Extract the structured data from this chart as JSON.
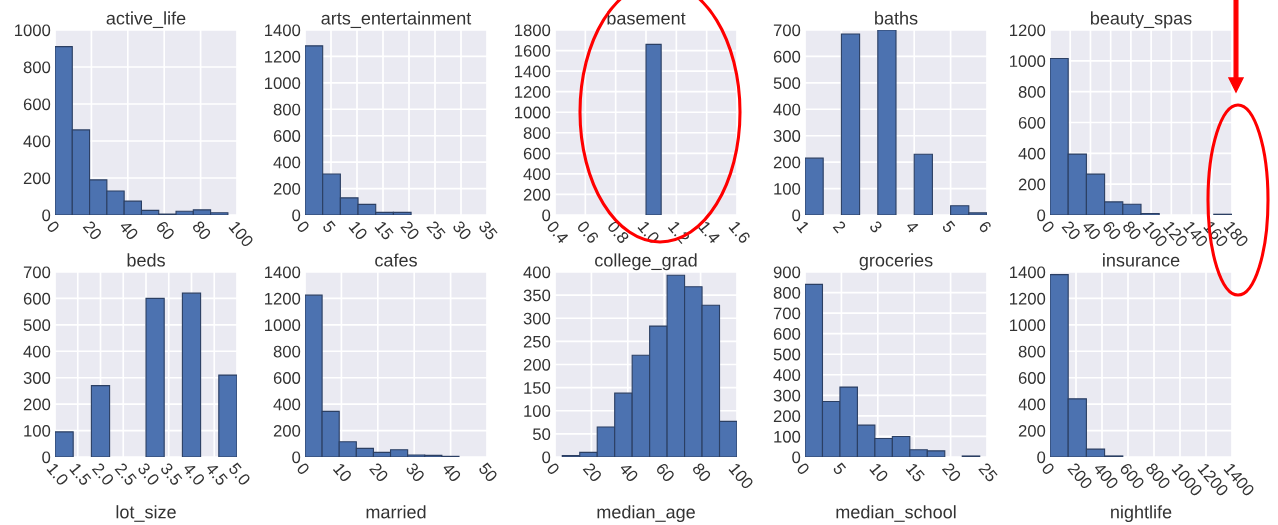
{
  "chart_data": [
    {
      "type": "histogram",
      "title": "active_life",
      "color": "#4c72b0",
      "bins": [
        0,
        9.5,
        19,
        28.5,
        38,
        47.5,
        57,
        66.5,
        76,
        85.5,
        95
      ],
      "values": [
        910,
        460,
        190,
        130,
        75,
        25,
        5,
        20,
        28,
        12
      ],
      "xlim": [
        0,
        100
      ],
      "xticks": [
        0,
        20,
        40,
        60,
        80,
        100
      ],
      "ylim": [
        0,
        1000
      ],
      "yticks": [
        0,
        200,
        400,
        600,
        800,
        1000
      ],
      "grid": true
    },
    {
      "type": "histogram",
      "title": "arts_entertainment",
      "color": "#4c72b0",
      "bins": [
        0,
        3.4,
        6.8,
        10.2,
        13.6,
        17,
        20.4,
        23.8,
        27.2,
        30.6,
        34
      ],
      "values": [
        1280,
        310,
        130,
        80,
        20,
        20,
        0,
        0,
        0,
        0
      ],
      "xlim": [
        0,
        35
      ],
      "xticks": [
        0,
        5,
        10,
        15,
        20,
        25,
        30,
        35
      ],
      "ylim": [
        0,
        1400
      ],
      "yticks": [
        0,
        200,
        400,
        600,
        800,
        1000,
        1200,
        1400
      ],
      "grid": true
    },
    {
      "type": "histogram",
      "title": "basement",
      "color": "#4c72b0",
      "bins": [
        0.5,
        0.6,
        0.7,
        0.8,
        0.9,
        1.0,
        1.1,
        1.2,
        1.3,
        1.4,
        1.5
      ],
      "values": [
        0,
        0,
        0,
        0,
        0,
        1660,
        0,
        0,
        0,
        0
      ],
      "xlim": [
        0.4,
        1.6
      ],
      "xticks": [
        0.4,
        0.6,
        0.8,
        {
          "value": 1,
          "label": "1.0"
        },
        1.2,
        1.4,
        1.6
      ],
      "ylim": [
        0,
        1800
      ],
      "yticks": [
        0,
        200,
        400,
        600,
        800,
        1000,
        1200,
        1400,
        1600,
        1800
      ],
      "grid": true
    },
    {
      "type": "histogram",
      "title": "baths",
      "color": "#4c72b0",
      "bins": [
        1,
        1.5,
        2,
        2.5,
        3,
        3.5,
        4,
        4.5,
        5,
        5.5,
        6
      ],
      "values": [
        215,
        0,
        685,
        0,
        700,
        0,
        230,
        0,
        35,
        8
      ],
      "xlim": [
        1,
        6
      ],
      "xticks": [
        1,
        2,
        3,
        4,
        5,
        6
      ],
      "ylim": [
        0,
        700
      ],
      "yticks": [
        0,
        100,
        200,
        300,
        400,
        500,
        600,
        700
      ],
      "grid": true
    },
    {
      "type": "histogram",
      "title": "beauty_spas",
      "color": "#4c72b0",
      "bins": [
        0,
        18,
        36,
        54,
        72,
        90,
        108,
        126,
        144,
        162,
        180
      ],
      "values": [
        1015,
        395,
        265,
        85,
        70,
        10,
        0,
        0,
        0,
        5
      ],
      "xlim": [
        0,
        180
      ],
      "xticks": [
        0,
        20,
        40,
        60,
        80,
        100,
        120,
        140,
        160,
        180
      ],
      "ylim": [
        0,
        1200
      ],
      "yticks": [
        0,
        200,
        400,
        600,
        800,
        1000,
        1200
      ],
      "grid": true
    },
    {
      "type": "histogram",
      "title": "beds",
      "color": "#4c72b0",
      "bins": [
        1,
        1.4,
        1.8,
        2.2,
        2.6,
        3,
        3.4,
        3.8,
        4.2,
        4.6,
        5
      ],
      "values": [
        95,
        0,
        270,
        0,
        0,
        600,
        0,
        620,
        0,
        310
      ],
      "xlim": [
        1,
        5
      ],
      "xticks": [
        {
          "value": 1,
          "label": "1.0"
        },
        1.5,
        {
          "value": 2,
          "label": "2.0"
        },
        2.5,
        {
          "value": 3,
          "label": "3.0"
        },
        3.5,
        {
          "value": 4,
          "label": "4.0"
        },
        4.5,
        {
          "value": 5,
          "label": "5.0"
        }
      ],
      "ylim": [
        0,
        700
      ],
      "yticks": [
        0,
        100,
        200,
        300,
        400,
        500,
        600,
        700
      ],
      "grid": true,
      "annotations": [
        "lot_size"
      ]
    },
    {
      "type": "histogram",
      "title": "cafes",
      "color": "#4c72b0",
      "bins": [
        0,
        4.7,
        9.4,
        14.1,
        18.8,
        23.5,
        28.2,
        32.9,
        37.6,
        42.3,
        47
      ],
      "values": [
        1225,
        345,
        115,
        65,
        35,
        55,
        15,
        12,
        5,
        0
      ],
      "xlim": [
        0,
        50
      ],
      "xticks": [
        0,
        10,
        20,
        30,
        40,
        50
      ],
      "ylim": [
        0,
        1400
      ],
      "yticks": [
        0,
        200,
        400,
        600,
        800,
        1000,
        1200,
        1400
      ],
      "grid": true,
      "annotations": [
        "married"
      ]
    },
    {
      "type": "histogram",
      "title": "college_grad",
      "color": "#4c72b0",
      "bins": [
        4,
        13.6,
        23.2,
        32.8,
        42.4,
        52,
        61.6,
        71.2,
        80.8,
        90.4,
        100
      ],
      "values": [
        3,
        10,
        65,
        138,
        220,
        283,
        393,
        368,
        328,
        77
      ],
      "xlim": [
        0,
        100
      ],
      "xticks": [
        0,
        20,
        40,
        60,
        80,
        100
      ],
      "ylim": [
        0,
        400
      ],
      "yticks": [
        0,
        50,
        100,
        150,
        200,
        250,
        300,
        350,
        400
      ],
      "grid": true,
      "annotations": [
        "median_age"
      ]
    },
    {
      "type": "histogram",
      "title": "groceries",
      "color": "#4c72b0",
      "bins": [
        0,
        2.4,
        4.8,
        7.2,
        9.6,
        12,
        14.4,
        16.8,
        19.2,
        21.6,
        24
      ],
      "values": [
        840,
        270,
        340,
        155,
        90,
        100,
        35,
        30,
        0,
        5
      ],
      "xlim": [
        0,
        25
      ],
      "xticks": [
        0,
        5,
        10,
        15,
        20,
        25
      ],
      "ylim": [
        0,
        900
      ],
      "yticks": [
        0,
        100,
        200,
        300,
        400,
        500,
        600,
        700,
        800,
        900
      ],
      "grid": true,
      "annotations": [
        "median_school"
      ]
    },
    {
      "type": "histogram",
      "title": "insurance",
      "color": "#4c72b0",
      "bins": [
        0,
        140,
        280,
        420,
        560,
        700,
        840,
        980,
        1120,
        1260,
        1400
      ],
      "values": [
        1380,
        440,
        60,
        8,
        0,
        0,
        0,
        0,
        0,
        0
      ],
      "xlim": [
        0,
        1400
      ],
      "xticks": [
        0,
        200,
        400,
        600,
        800,
        1000,
        1200,
        1400
      ],
      "ylim": [
        0,
        1400
      ],
      "yticks": [
        0,
        200,
        400,
        600,
        800,
        1000,
        1200,
        1400
      ],
      "grid": true,
      "annotations": [
        "nightlife"
      ]
    }
  ]
}
